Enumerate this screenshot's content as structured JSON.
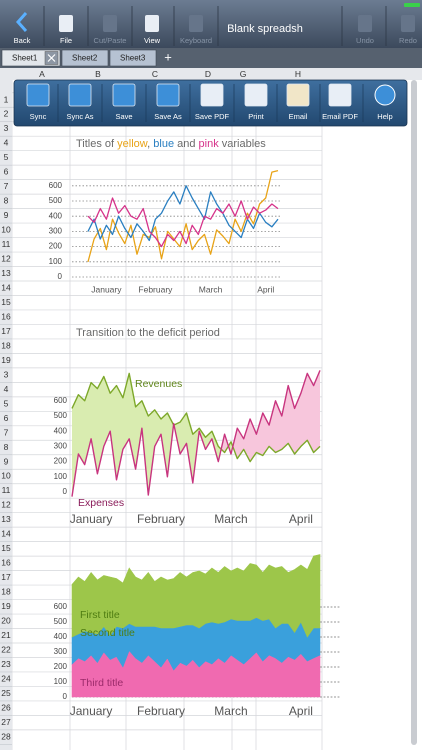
{
  "status": {
    "battery": "full"
  },
  "toolbar": {
    "buttons": [
      {
        "label": "Back",
        "enabled": true
      },
      {
        "label": "File",
        "enabled": true
      },
      {
        "label": "Cut/Paste",
        "enabled": false
      },
      {
        "label": "View",
        "enabled": true
      },
      {
        "label": "Keyboard",
        "enabled": false
      },
      {
        "label": "Undo",
        "enabled": false
      },
      {
        "label": "Redo",
        "enabled": false
      }
    ],
    "document_title": "Blank spreadsh"
  },
  "tabs": [
    {
      "label": "Sheet1",
      "active": true
    },
    {
      "label": "Sheet2",
      "active": false
    },
    {
      "label": "Sheet3",
      "active": false
    }
  ],
  "add_tab": "+",
  "columns": [
    "A",
    "B",
    "C",
    "D",
    "G",
    "H"
  ],
  "rows": [
    1,
    2,
    3,
    4,
    5,
    6,
    7,
    8,
    9,
    10,
    11,
    12,
    13,
    14,
    15,
    16,
    17,
    18,
    19,
    3,
    4,
    5,
    6,
    7,
    8,
    9,
    10,
    11,
    12,
    13,
    14,
    15,
    16,
    17,
    18,
    19,
    20,
    21,
    22,
    23,
    24,
    25,
    26,
    27,
    28
  ],
  "action_bar": [
    "Sync",
    "Sync As",
    "Save",
    "Save As",
    "Save PDF",
    "Print",
    "Email",
    "Email PDF",
    "Help"
  ],
  "chart_data": [
    {
      "type": "line",
      "title_parts": [
        {
          "text": "Titles of ",
          "color": "#6a6a6a"
        },
        {
          "text": "yellow",
          "color": "#e8a317"
        },
        {
          "text": ", ",
          "color": "#6a6a6a"
        },
        {
          "text": "blue",
          "color": "#2a7fc1"
        },
        {
          "text": " and ",
          "color": "#6a6a6a"
        },
        {
          "text": "pink",
          "color": "#d6338a"
        },
        {
          "text": " variables",
          "color": "#6a6a6a"
        }
      ],
      "categories": [
        null,
        null,
        null,
        "January",
        null,
        null,
        null,
        null,
        null,
        null,
        null,
        "February",
        null,
        null,
        null,
        null,
        null,
        null,
        null,
        null,
        "March",
        null,
        null,
        null,
        null,
        null,
        null,
        null,
        null,
        "April",
        null,
        null
      ],
      "series": [
        {
          "color": "#e8a317",
          "values": [
            100,
            250,
            320,
            180,
            380,
            290,
            220,
            340,
            150,
            280,
            260,
            330,
            120,
            300,
            250,
            200,
            350,
            180,
            240,
            280,
            150,
            310,
            270,
            220,
            380,
            300,
            420,
            350,
            480,
            520,
            690,
            700
          ]
        },
        {
          "color": "#2a7fc1",
          "values": [
            300,
            380,
            250,
            340,
            280,
            400,
            320,
            260,
            350,
            300,
            240,
            380,
            420,
            500,
            560,
            480,
            600,
            520,
            450,
            380,
            560,
            480,
            420,
            340,
            300,
            260,
            380,
            320,
            420,
            360,
            330,
            380
          ]
        },
        {
          "color": "#d6338a",
          "values": [
            400,
            360,
            450,
            380,
            520,
            420,
            470,
            400,
            380,
            450,
            300,
            260,
            200,
            280,
            240,
            300,
            220,
            340,
            280,
            400,
            380,
            450,
            420,
            480,
            400,
            500,
            380,
            460,
            420,
            440,
            480,
            450
          ]
        }
      ],
      "ylim": [
        0,
        700
      ],
      "yticks": [
        0,
        100,
        200,
        300,
        400,
        500,
        600
      ],
      "grid": true
    },
    {
      "type": "difference_area",
      "title": "Transition to the deficit period",
      "categories": [
        null,
        null,
        null,
        "January",
        null,
        null,
        null,
        null,
        null,
        null,
        null,
        null,
        null,
        null,
        "February",
        null,
        null,
        null,
        null,
        null,
        null,
        null,
        null,
        null,
        null,
        "March",
        null,
        null,
        null,
        null,
        null,
        null,
        null,
        null,
        null,
        null,
        "April",
        null,
        null,
        null
      ],
      "series": [
        {
          "name": "Revenues",
          "color": "#7da82a",
          "fill": "#d9ecb0",
          "values": [
            550,
            640,
            600,
            720,
            680,
            760,
            650,
            700,
            620,
            780,
            560,
            600,
            500,
            540,
            480,
            520,
            440,
            460,
            520,
            380,
            420,
            360,
            400,
            300,
            260,
            330,
            220,
            280,
            200,
            260,
            240,
            300,
            260,
            280,
            320,
            250,
            300,
            340,
            260,
            300
          ]
        },
        {
          "name": "Expenses",
          "color": "#c8357f",
          "fill": "#f7c6dc",
          "values": [
            -30,
            250,
            180,
            350,
            120,
            300,
            400,
            80,
            280,
            350,
            150,
            420,
            -20,
            300,
            380,
            100,
            450,
            250,
            320,
            60,
            400,
            280,
            350,
            200,
            380,
            250,
            420,
            350,
            480,
            380,
            520,
            440,
            600,
            500,
            700,
            550,
            650,
            780,
            700,
            800
          ]
        }
      ],
      "ylim": [
        -100,
        850
      ],
      "yticks": [
        0,
        100,
        200,
        300,
        400,
        500,
        600
      ],
      "grid": false
    },
    {
      "type": "stacked_area",
      "categories": [
        null,
        null,
        null,
        "January",
        null,
        null,
        null,
        null,
        null,
        null,
        null,
        null,
        null,
        null,
        "February",
        null,
        null,
        null,
        null,
        null,
        null,
        null,
        null,
        null,
        null,
        "March",
        null,
        null,
        null,
        null,
        null,
        null,
        null,
        null,
        null,
        null,
        "April",
        null,
        null,
        null
      ],
      "series": [
        {
          "name": "First title",
          "color": "#9dc64a",
          "values": [
            350,
            380,
            330,
            400,
            360,
            340,
            390,
            320,
            300,
            370,
            330,
            310,
            360,
            300,
            340,
            320,
            330,
            360,
            320,
            350,
            380,
            330,
            360,
            340,
            370,
            320,
            350,
            330,
            380,
            350,
            320,
            360,
            400,
            380,
            340,
            420,
            380,
            450,
            480,
            490
          ]
        },
        {
          "name": "Second title",
          "color": "#3aa0dc",
          "values": [
            180,
            160,
            200,
            150,
            190,
            170,
            160,
            200,
            260,
            180,
            210,
            240,
            190,
            230,
            260,
            200,
            280,
            240,
            270,
            230,
            260,
            250,
            280,
            230,
            270,
            240,
            260,
            290,
            250,
            230,
            270,
            240,
            200,
            260,
            220,
            180,
            210,
            160,
            200,
            180
          ]
        },
        {
          "name": "Third title",
          "color": "#f06ab0",
          "values": [
            220,
            260,
            240,
            280,
            230,
            300,
            250,
            270,
            200,
            310,
            260,
            230,
            280,
            240,
            200,
            260,
            180,
            230,
            210,
            250,
            200,
            240,
            220,
            260,
            230,
            280,
            250,
            220,
            260,
            300,
            240,
            280,
            260,
            230,
            270,
            250,
            290,
            240,
            260,
            280
          ]
        }
      ],
      "ylim": [
        0,
        950
      ],
      "yticks": [
        0,
        100,
        200,
        300,
        400,
        500,
        600
      ],
      "grid": true
    }
  ]
}
